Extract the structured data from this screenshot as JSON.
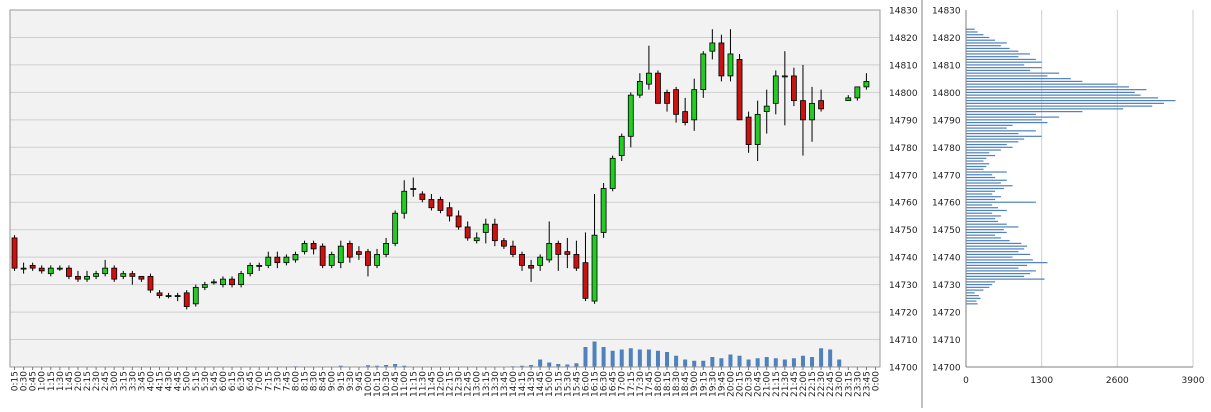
{
  "chart_data": [
    {
      "type": "candlestick",
      "title": "",
      "ylim": [
        14700,
        14830
      ],
      "y_ticks": [
        "14700",
        "14710",
        "14720",
        "14730",
        "14740",
        "14750",
        "14760",
        "14770",
        "14780",
        "14790",
        "14800",
        "14810",
        "14820",
        "14830"
      ],
      "x_labels": [
        "0:15",
        "0:30",
        "0:45",
        "1:00",
        "1:15",
        "1:30",
        "1:45",
        "2:00",
        "2:15",
        "2:30",
        "2:45",
        "3:00",
        "3:15",
        "3:30",
        "3:45",
        "4:00",
        "4:15",
        "4:30",
        "4:45",
        "5:00",
        "5:15",
        "5:30",
        "5:45",
        "6:00",
        "6:15",
        "6:30",
        "6:45",
        "7:00",
        "7:15",
        "7:30",
        "7:45",
        "8:00",
        "8:15",
        "8:30",
        "8:45",
        "9:00",
        "9:15",
        "9:30",
        "9:45",
        "10:00",
        "10:15",
        "10:30",
        "10:45",
        "11:00",
        "11:15",
        "11:30",
        "11:45",
        "12:00",
        "12:15",
        "12:30",
        "12:45",
        "13:00",
        "13:15",
        "13:30",
        "13:45",
        "14:00",
        "14:15",
        "14:30",
        "14:45",
        "15:00",
        "15:15",
        "15:30",
        "15:45",
        "16:00",
        "16:15",
        "16:30",
        "16:45",
        "17:00",
        "17:15",
        "17:30",
        "17:45",
        "18:00",
        "18:15",
        "18:30",
        "18:45",
        "19:00",
        "19:15",
        "19:30",
        "19:45",
        "20:00",
        "20:15",
        "20:30",
        "20:45",
        "21:00",
        "21:15",
        "21:30",
        "21:45",
        "22:00",
        "22:15",
        "22:30",
        "22:45",
        "23:00",
        "23:15",
        "23:30",
        "23:45",
        "0:00"
      ],
      "colors": {
        "up": "#22cc22",
        "down": "#cc1111",
        "volume": "#4f81bd",
        "plot_bg": "#f2f2f2",
        "grid": "#cfcfcf"
      },
      "grid": true,
      "candles": [
        {
          "o": 14747,
          "h": 14748,
          "l": 14735,
          "c": 14736
        },
        {
          "o": 14736,
          "h": 14738,
          "l": 14734,
          "c": 14736
        },
        {
          "o": 14737,
          "h": 14738,
          "l": 14735,
          "c": 14736
        },
        {
          "o": 14736,
          "h": 14737,
          "l": 14734,
          "c": 14735
        },
        {
          "o": 14734,
          "h": 14737,
          "l": 14733,
          "c": 14736
        },
        {
          "o": 14736,
          "h": 14737,
          "l": 14735,
          "c": 14736
        },
        {
          "o": 14736,
          "h": 14737,
          "l": 14732,
          "c": 14733
        },
        {
          "o": 14733,
          "h": 14735,
          "l": 14731,
          "c": 14732
        },
        {
          "o": 14732,
          "h": 14735,
          "l": 14731,
          "c": 14733
        },
        {
          "o": 14733,
          "h": 14735,
          "l": 14732,
          "c": 14734
        },
        {
          "o": 14734,
          "h": 14739,
          "l": 14733,
          "c": 14736
        },
        {
          "o": 14736,
          "h": 14737,
          "l": 14731,
          "c": 14732
        },
        {
          "o": 14733,
          "h": 14735,
          "l": 14732,
          "c": 14734
        },
        {
          "o": 14734,
          "h": 14735,
          "l": 14730,
          "c": 14733
        },
        {
          "o": 14733,
          "h": 14733,
          "l": 14731,
          "c": 14732
        },
        {
          "o": 14733,
          "h": 14734,
          "l": 14727,
          "c": 14728
        },
        {
          "o": 14727,
          "h": 14728,
          "l": 14725,
          "c": 14726
        },
        {
          "o": 14726,
          "h": 14727,
          "l": 14725,
          "c": 14726
        },
        {
          "o": 14726,
          "h": 14727,
          "l": 14724,
          "c": 14726
        },
        {
          "o": 14727,
          "h": 14728,
          "l": 14721,
          "c": 14722
        },
        {
          "o": 14723,
          "h": 14730,
          "l": 14722,
          "c": 14729
        },
        {
          "o": 14729,
          "h": 14731,
          "l": 14728,
          "c": 14730
        },
        {
          "o": 14731,
          "h": 14732,
          "l": 14730,
          "c": 14731
        },
        {
          "o": 14730,
          "h": 14733,
          "l": 14729,
          "c": 14732
        },
        {
          "o": 14732,
          "h": 14733,
          "l": 14729,
          "c": 14730
        },
        {
          "o": 14730,
          "h": 14735,
          "l": 14729,
          "c": 14734
        },
        {
          "o": 14734,
          "h": 14738,
          "l": 14733,
          "c": 14737
        },
        {
          "o": 14737,
          "h": 14738,
          "l": 14735,
          "c": 14737
        },
        {
          "o": 14737,
          "h": 14742,
          "l": 14736,
          "c": 14740
        },
        {
          "o": 14740,
          "h": 14742,
          "l": 14736,
          "c": 14738
        },
        {
          "o": 14738,
          "h": 14741,
          "l": 14737,
          "c": 14740
        },
        {
          "o": 14739,
          "h": 14742,
          "l": 14738,
          "c": 14741
        },
        {
          "o": 14742,
          "h": 14746,
          "l": 14741,
          "c": 14745
        },
        {
          "o": 14745,
          "h": 14746,
          "l": 14741,
          "c": 14743
        },
        {
          "o": 14744,
          "h": 14745,
          "l": 14736,
          "c": 14737
        },
        {
          "o": 14737,
          "h": 14742,
          "l": 14736,
          "c": 14741
        },
        {
          "o": 14738,
          "h": 14746,
          "l": 14736,
          "c": 14744
        },
        {
          "o": 14745,
          "h": 14746,
          "l": 14738,
          "c": 14740
        },
        {
          "o": 14742,
          "h": 14744,
          "l": 14739,
          "c": 14741
        },
        {
          "o": 14742,
          "h": 14743,
          "l": 14733,
          "c": 14737
        },
        {
          "o": 14737,
          "h": 14743,
          "l": 14736,
          "c": 14741
        },
        {
          "o": 14741,
          "h": 14747,
          "l": 14740,
          "c": 14745
        },
        {
          "o": 14745,
          "h": 14757,
          "l": 14744,
          "c": 14756
        },
        {
          "o": 14756,
          "h": 14768,
          "l": 14754,
          "c": 14764
        },
        {
          "o": 14765,
          "h": 14769,
          "l": 14762,
          "c": 14765
        },
        {
          "o": 14763,
          "h": 14764,
          "l": 14760,
          "c": 14761
        },
        {
          "o": 14761,
          "h": 14763,
          "l": 14757,
          "c": 14758
        },
        {
          "o": 14761,
          "h": 14762,
          "l": 14756,
          "c": 14757
        },
        {
          "o": 14758,
          "h": 14760,
          "l": 14753,
          "c": 14755
        },
        {
          "o": 14755,
          "h": 14757,
          "l": 14750,
          "c": 14751
        },
        {
          "o": 14751,
          "h": 14753,
          "l": 14746,
          "c": 14747
        },
        {
          "o": 14746,
          "h": 14749,
          "l": 14745,
          "c": 14747
        },
        {
          "o": 14749,
          "h": 14754,
          "l": 14745,
          "c": 14752
        },
        {
          "o": 14752,
          "h": 14754,
          "l": 14744,
          "c": 14746
        },
        {
          "o": 14746,
          "h": 14747,
          "l": 14743,
          "c": 14744
        },
        {
          "o": 14744,
          "h": 14746,
          "l": 14740,
          "c": 14741
        },
        {
          "o": 14741,
          "h": 14742,
          "l": 14735,
          "c": 14737
        },
        {
          "o": 14737,
          "h": 14739,
          "l": 14731,
          "c": 14736
        },
        {
          "o": 14737,
          "h": 14741,
          "l": 14735,
          "c": 14740
        },
        {
          "o": 14739,
          "h": 14753,
          "l": 14738,
          "c": 14745
        },
        {
          "o": 14745,
          "h": 14746,
          "l": 14735,
          "c": 14741
        },
        {
          "o": 14742,
          "h": 14747,
          "l": 14736,
          "c": 14741
        },
        {
          "o": 14741,
          "h": 14746,
          "l": 14735,
          "c": 14736
        },
        {
          "o": 14738,
          "h": 14749,
          "l": 14724,
          "c": 14725
        },
        {
          "o": 14724,
          "h": 14763,
          "l": 14723,
          "c": 14748
        },
        {
          "o": 14749,
          "h": 14767,
          "l": 14747,
          "c": 14765
        },
        {
          "o": 14765,
          "h": 14777,
          "l": 14764,
          "c": 14776
        },
        {
          "o": 14777,
          "h": 14785,
          "l": 14775,
          "c": 14784
        },
        {
          "o": 14784,
          "h": 14800,
          "l": 14780,
          "c": 14799
        },
        {
          "o": 14799,
          "h": 14807,
          "l": 14798,
          "c": 14804
        },
        {
          "o": 14803,
          "h": 14817,
          "l": 14801,
          "c": 14807
        },
        {
          "o": 14807,
          "h": 14808,
          "l": 14797,
          "c": 14796
        },
        {
          "o": 14800,
          "h": 14801,
          "l": 14793,
          "c": 14796
        },
        {
          "o": 14801,
          "h": 14802,
          "l": 14789,
          "c": 14792
        },
        {
          "o": 14793,
          "h": 14798,
          "l": 14788,
          "c": 14789
        },
        {
          "o": 14790,
          "h": 14805,
          "l": 14786,
          "c": 14801
        },
        {
          "o": 14801,
          "h": 14815,
          "l": 14798,
          "c": 14814
        },
        {
          "o": 14815,
          "h": 14823,
          "l": 14812,
          "c": 14818
        },
        {
          "o": 14818,
          "h": 14821,
          "l": 14804,
          "c": 14806
        },
        {
          "o": 14806,
          "h": 14823,
          "l": 14804,
          "c": 14814
        },
        {
          "o": 14812,
          "h": 14814,
          "l": 14790,
          "c": 14790
        },
        {
          "o": 14791,
          "h": 14793,
          "l": 14778,
          "c": 14781
        },
        {
          "o": 14781,
          "h": 14797,
          "l": 14775,
          "c": 14792
        },
        {
          "o": 14793,
          "h": 14801,
          "l": 14785,
          "c": 14795
        },
        {
          "o": 14796,
          "h": 14808,
          "l": 14792,
          "c": 14806
        },
        {
          "o": 14806,
          "h": 14815,
          "l": 14788,
          "c": 14806
        },
        {
          "o": 14806,
          "h": 14809,
          "l": 14795,
          "c": 14797
        },
        {
          "o": 14797,
          "h": 14810,
          "l": 14777,
          "c": 14790
        },
        {
          "o": 14790,
          "h": 14802,
          "l": 14782,
          "c": 14796
        },
        {
          "o": 14797,
          "h": 14801,
          "l": 14793,
          "c": 14794
        },
        null,
        null,
        {
          "o": 14797,
          "h": 14799,
          "l": 14797,
          "c": 14798
        },
        {
          "o": 14798,
          "h": 14802,
          "l": 14797,
          "c": 14802
        },
        {
          "o": 14802,
          "h": 14807,
          "l": 14801,
          "c": 14804
        },
        null
      ],
      "volume_values": [
        0,
        0,
        0,
        0,
        0,
        0,
        0,
        0,
        0,
        0,
        0,
        0,
        0,
        0,
        0,
        0,
        0,
        0,
        0,
        0,
        0,
        0,
        0,
        0,
        0,
        0,
        0,
        0,
        0,
        0,
        0,
        0.3,
        0,
        0,
        0,
        0,
        0.5,
        0,
        0,
        0.7,
        0.5,
        0.8,
        1.2,
        0.5,
        0,
        0,
        0,
        0,
        0,
        0,
        0,
        0,
        0,
        0,
        0,
        0.3,
        0.5,
        0.8,
        3.0,
        1.8,
        1.2,
        1.0,
        1.5,
        8.0,
        10.2,
        8.0,
        6.5,
        7.0,
        7.5,
        7.0,
        7.0,
        6.5,
        6.0,
        4.5,
        3.0,
        2.5,
        2.5,
        4.0,
        3.5,
        5.0,
        4.5,
        3.0,
        3.5,
        4.0,
        3.5,
        3.0,
        3.5,
        4.5,
        4.0,
        7.5,
        7.0,
        3.0,
        0,
        0,
        0,
        0
      ]
    },
    {
      "type": "bar",
      "orientation": "horizontal",
      "title": "",
      "ylim": [
        14700,
        14830
      ],
      "y_ticks": [
        "14700",
        "14710",
        "14720",
        "14730",
        "14740",
        "14750",
        "14760",
        "14770",
        "14780",
        "14790",
        "14800",
        "14810",
        "14820",
        "14830"
      ],
      "xlim": [
        0,
        3900
      ],
      "x_ticks": [
        "0",
        "1300",
        "2600",
        "3900"
      ],
      "colors": {
        "bar": "#4f81bd",
        "grid": "#cfcfcf"
      },
      "grid": true,
      "price_levels": [
        14723,
        14724,
        14725,
        14726,
        14727,
        14728,
        14729,
        14730,
        14731,
        14732,
        14733,
        14734,
        14735,
        14736,
        14737,
        14738,
        14739,
        14740,
        14741,
        14742,
        14743,
        14744,
        14745,
        14746,
        14747,
        14748,
        14749,
        14750,
        14751,
        14752,
        14753,
        14754,
        14755,
        14756,
        14757,
        14758,
        14759,
        14760,
        14761,
        14762,
        14763,
        14764,
        14765,
        14766,
        14767,
        14768,
        14769,
        14770,
        14771,
        14772,
        14773,
        14774,
        14775,
        14776,
        14777,
        14778,
        14779,
        14780,
        14781,
        14782,
        14783,
        14784,
        14785,
        14786,
        14787,
        14788,
        14789,
        14790,
        14791,
        14792,
        14793,
        14794,
        14795,
        14796,
        14797,
        14798,
        14799,
        14800,
        14801,
        14802,
        14803,
        14804,
        14805,
        14806,
        14807,
        14808,
        14809,
        14810,
        14811,
        14812,
        14813,
        14814,
        14815,
        14816,
        14817,
        14818,
        14819,
        14820,
        14821,
        14822,
        14823
      ],
      "values": [
        200,
        180,
        250,
        220,
        150,
        300,
        400,
        450,
        500,
        1350,
        1000,
        1100,
        1200,
        900,
        1050,
        1400,
        1150,
        800,
        1100,
        900,
        1000,
        1050,
        950,
        750,
        600,
        500,
        700,
        650,
        900,
        700,
        550,
        500,
        600,
        450,
        700,
        550,
        450,
        1200,
        500,
        600,
        450,
        500,
        650,
        800,
        600,
        700,
        500,
        450,
        700,
        300,
        350,
        400,
        300,
        350,
        500,
        400,
        600,
        800,
        700,
        900,
        1000,
        1300,
        900,
        1200,
        700,
        800,
        1400,
        1300,
        1600,
        1200,
        2000,
        2700,
        3200,
        3400,
        3600,
        3300,
        3000,
        2900,
        3100,
        2800,
        2600,
        2000,
        1800,
        1400,
        1600,
        1100,
        1300,
        1000,
        1300,
        1200,
        900,
        1100,
        900,
        750,
        600,
        700,
        500,
        400,
        300,
        200,
        150
      ]
    }
  ]
}
